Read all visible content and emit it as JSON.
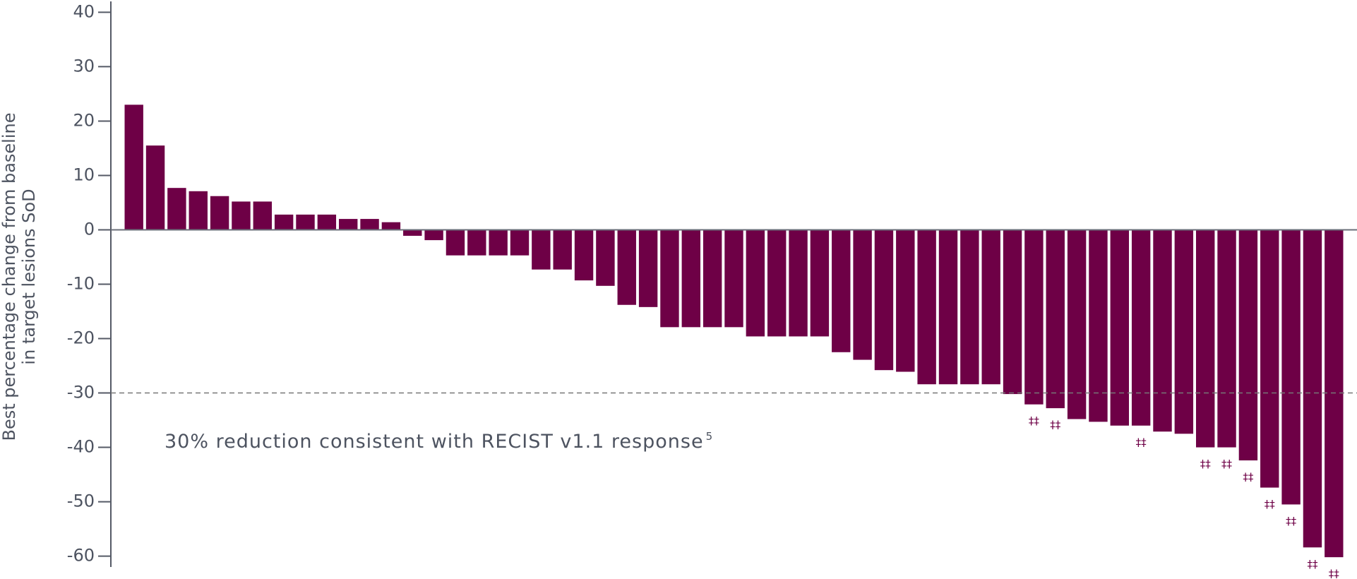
{
  "chart_data": {
    "type": "bar",
    "ylabel": [
      "Best percentage change from baseline",
      "in target lesions SoD"
    ],
    "annotation": "30% reduction consistent with RECIST v1.1 response",
    "annotation_superscript": "5",
    "reference_line": -30,
    "color": "#6e0046",
    "categories": [
      null,
      null,
      null,
      null,
      null,
      null,
      null,
      null,
      null,
      null,
      null,
      null,
      null,
      null,
      null,
      null,
      null,
      null,
      null,
      null,
      null,
      null,
      null,
      null,
      null,
      null,
      null,
      null,
      null,
      null,
      null,
      null,
      null,
      null,
      null,
      null,
      null,
      null,
      null,
      null,
      null,
      null,
      null,
      null,
      null,
      null,
      null,
      null,
      null,
      null,
      null,
      null,
      null,
      null,
      null,
      null,
      null
    ],
    "values": [
      23,
      15.5,
      7.7,
      7.1,
      6.2,
      5.2,
      5.2,
      2.8,
      2.8,
      2.8,
      2.0,
      2.0,
      1.4,
      -1.1,
      -1.9,
      -4.7,
      -4.7,
      -4.7,
      -4.7,
      -7.3,
      -7.3,
      -9.3,
      -10.3,
      -13.8,
      -14.2,
      -17.9,
      -17.9,
      -17.9,
      -17.9,
      -19.6,
      -19.6,
      -19.6,
      -19.6,
      -22.5,
      -23.9,
      -25.8,
      -26.1,
      -28.4,
      -28.4,
      -28.4,
      -28.4,
      -30.2,
      -32.1,
      -32.8,
      -34.8,
      -35.3,
      -36.0,
      -36.0,
      -37.1,
      -37.5,
      -40.0,
      -40.0,
      -42.4,
      -47.4,
      -50.5,
      -58.4,
      -60.2
    ],
    "bar_notes": [
      null,
      null,
      null,
      null,
      null,
      null,
      null,
      null,
      null,
      null,
      null,
      null,
      null,
      null,
      null,
      null,
      null,
      null,
      null,
      null,
      null,
      null,
      null,
      null,
      null,
      null,
      null,
      null,
      null,
      null,
      null,
      null,
      null,
      null,
      null,
      null,
      null,
      null,
      null,
      null,
      null,
      null,
      "‡‡",
      "‡‡",
      null,
      null,
      null,
      "‡‡",
      null,
      null,
      "‡‡",
      "‡‡",
      "‡‡",
      "‡‡",
      "‡‡",
      "‡‡",
      "‡‡"
    ],
    "ylim": [
      -62,
      42
    ],
    "yticks": [
      -60,
      -50,
      -40,
      -30,
      -20,
      -10,
      0,
      10,
      20,
      30,
      40
    ]
  }
}
